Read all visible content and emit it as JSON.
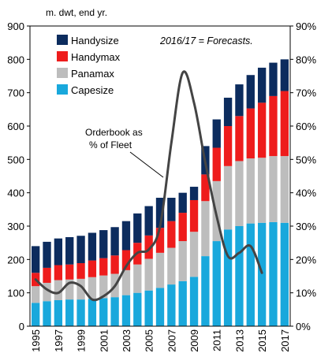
{
  "chart_data": {
    "type": "bar",
    "stacked": true,
    "ylabel": "m. dwt, end yr.",
    "note": "2016/17 = Forecasts.",
    "ylim": [
      0,
      900
    ],
    "y2lim": [
      0,
      90
    ],
    "yticks": [
      "0",
      "100",
      "200",
      "300",
      "400",
      "500",
      "600",
      "700",
      "800",
      "900"
    ],
    "y2ticks": [
      "0%",
      "10%",
      "20%",
      "30%",
      "40%",
      "50%",
      "60%",
      "70%",
      "80%",
      "90%"
    ],
    "xtick_labels": [
      "1995",
      "1997",
      "1999",
      "2001",
      "2003",
      "2005",
      "2007",
      "2009",
      "2011",
      "2013",
      "2015",
      "2017"
    ],
    "categories": [
      "1995",
      "1996",
      "1997",
      "1998",
      "1999",
      "2000",
      "2001",
      "2002",
      "2003",
      "2004",
      "2005",
      "2006",
      "2007",
      "2008",
      "2009",
      "2010",
      "2011",
      "2012",
      "2013",
      "2014",
      "2015",
      "2016",
      "2017"
    ],
    "series": [
      {
        "name": "Capesize",
        "color": "#19a8dc",
        "values": [
          70,
          75,
          78,
          80,
          80,
          82,
          84,
          87,
          93,
          100,
          107,
          115,
          125,
          135,
          148,
          210,
          255,
          290,
          300,
          308,
          310,
          312,
          310
        ]
      },
      {
        "name": "Panamax",
        "color": "#bdbdbd",
        "values": [
          50,
          55,
          60,
          60,
          62,
          65,
          68,
          70,
          75,
          85,
          95,
          105,
          110,
          120,
          135,
          165,
          180,
          190,
          195,
          195,
          195,
          198,
          200
        ]
      },
      {
        "name": "Handymax",
        "color": "#ee1c1c",
        "values": [
          40,
          45,
          45,
          45,
          47,
          50,
          52,
          55,
          60,
          65,
          70,
          75,
          80,
          85,
          95,
          80,
          100,
          120,
          135,
          150,
          165,
          180,
          195
        ]
      },
      {
        "name": "Handysize",
        "color": "#0c2c5e",
        "values": [
          80,
          78,
          80,
          82,
          82,
          83,
          84,
          85,
          87,
          88,
          88,
          90,
          70,
          60,
          40,
          85,
          85,
          85,
          95,
          100,
          105,
          100,
          95
        ]
      }
    ],
    "legend_order": [
      "Handysize",
      "Handymax",
      "Panamax",
      "Capesize"
    ],
    "line": {
      "name": "Orderbook as % of Fleet",
      "color": "#444444",
      "x": [
        "1995",
        "1996",
        "1997",
        "1998",
        "1999",
        "2000",
        "2001",
        "2002",
        "2003",
        "2004",
        "2005",
        "2006",
        "2007",
        "2008",
        "2009",
        "2010",
        "2011",
        "2012",
        "2013",
        "2014",
        "2015"
      ],
      "values": [
        14,
        11,
        10,
        13,
        12,
        8,
        9,
        12,
        18,
        22,
        23,
        30,
        55,
        76,
        67,
        49,
        33,
        21,
        22,
        24,
        16
      ]
    },
    "annotation": "Orderbook as\n% of Fleet",
    "legend_position": "top-left",
    "grid": false
  }
}
